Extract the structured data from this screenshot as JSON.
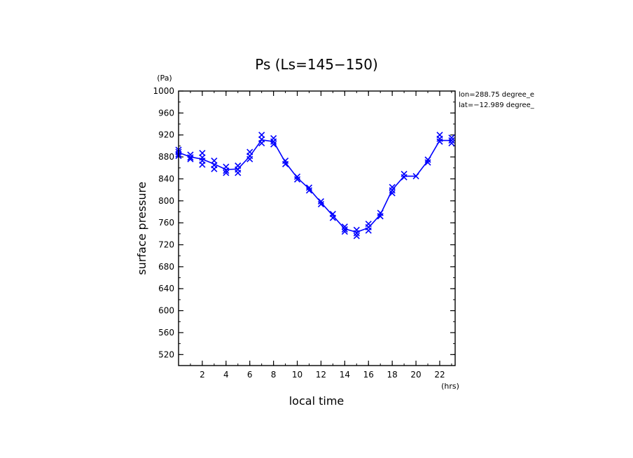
{
  "chart_data": {
    "type": "line",
    "title": "Ps (Ls=145−150)",
    "xlabel": "local time",
    "ylabel": "surface pressure",
    "x_unit": "(hrs)",
    "y_unit": "(Pa)",
    "annotations": [
      "lon=288.75 degree_e",
      "lat=−12.989 degree_"
    ],
    "xlim": [
      0,
      23.3
    ],
    "ylim": [
      500,
      1000
    ],
    "xticks": [
      "2",
      "4",
      "6",
      "8",
      "10",
      "12",
      "14",
      "16",
      "18",
      "20",
      "22"
    ],
    "yticks": [
      "520",
      "560",
      "600",
      "640",
      "680",
      "720",
      "760",
      "800",
      "840",
      "880",
      "920",
      "960",
      "1000"
    ],
    "line_color": "#0000ff",
    "marker": "x",
    "series": [
      {
        "x": [
          0,
          1,
          2,
          3,
          4,
          5,
          6,
          7,
          8,
          9,
          10,
          11,
          12,
          13,
          14,
          15,
          16,
          17,
          18,
          19,
          20,
          21,
          22,
          23
        ],
        "y": [
          888,
          880,
          876,
          867,
          857,
          858,
          881,
          911,
          908,
          870,
          842,
          822,
          797,
          773,
          749,
          743,
          751,
          775,
          820,
          845,
          845,
          873,
          910,
          910
        ]
      }
    ],
    "scatter_points": {
      "x": [
        0,
        0,
        0,
        0,
        1,
        1,
        1,
        2,
        2,
        2,
        2,
        3,
        3,
        3,
        4,
        4,
        4,
        5,
        5,
        5,
        6,
        6,
        6,
        7,
        7,
        7,
        8,
        8,
        8,
        9,
        9,
        10,
        10,
        11,
        11,
        12,
        12,
        13,
        13,
        14,
        14,
        14,
        15,
        15,
        15,
        16,
        16,
        16,
        17,
        17,
        18,
        18,
        18,
        19,
        19,
        20,
        21,
        21,
        22,
        22,
        22,
        23,
        23,
        23
      ],
      "y": [
        893,
        889,
        885,
        882,
        884,
        879,
        876,
        887,
        879,
        873,
        866,
        873,
        865,
        858,
        862,
        855,
        851,
        864,
        857,
        851,
        889,
        882,
        876,
        920,
        912,
        905,
        914,
        908,
        903,
        873,
        867,
        844,
        839,
        824,
        819,
        799,
        794,
        776,
        769,
        753,
        748,
        744,
        747,
        741,
        736,
        758,
        752,
        746,
        778,
        772,
        825,
        819,
        814,
        849,
        843,
        845,
        875,
        870,
        920,
        913,
        908,
        915,
        910,
        905
      ]
    }
  }
}
